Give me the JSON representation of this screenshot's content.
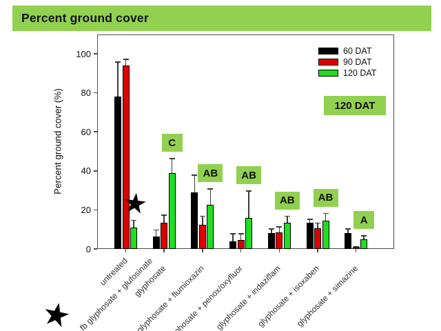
{
  "title": "Percent ground cover",
  "annotation_box": "120 DAT",
  "star_glyph": "★",
  "colors": {
    "banner_green": "#92d050",
    "sig_box_green": "#92d050",
    "bar_black": "#000000",
    "bar_red": "#dd0000",
    "bar_green": "#22dd22"
  },
  "legend": {
    "items": [
      {
        "label": "60 DAT",
        "color": "#000000"
      },
      {
        "label": "90 DAT",
        "color": "#dd0000"
      },
      {
        "label": "120 DAT",
        "color": "#22dd22"
      }
    ]
  },
  "chart_data": {
    "type": "bar",
    "title": "Percent ground cover",
    "xlabel": "",
    "ylabel": "Percent ground cover (%)",
    "ylim": [
      0,
      110
    ],
    "yticks": [
      0,
      20,
      40,
      60,
      80,
      100
    ],
    "grid": false,
    "legend_position": "top-right-inside",
    "categories": [
      "untreated fb glyphosate + glufosinate",
      "glyphosate",
      "glyphosate + flumioxazin",
      "glyphosate + penox/oxyfluor",
      "glyphosate + indaziflam",
      "glyphosate + isoxaben",
      "glyphosate + simazine"
    ],
    "axis_label_lines": [
      "untreated",
      "fb glyphosate + glufosinate",
      "glyphosate",
      "glyphosate + flumioxazin",
      "glyphosate + penox/oxyfluor",
      "glyphosate + indaziflam",
      "glyphosate + isoxaben",
      "glyphosate + simazine"
    ],
    "series": [
      {
        "name": "60 DAT",
        "color": "#000000",
        "values": [
          78,
          6.5,
          29,
          4,
          8,
          13.5,
          8
        ],
        "errors_top": [
          96,
          10,
          38,
          8,
          10.5,
          15.5,
          10.5
        ]
      },
      {
        "name": "90 DAT",
        "color": "#dd0000",
        "values": [
          94,
          13.5,
          12.5,
          4.5,
          8.5,
          10.5,
          1
        ],
        "errors_top": [
          97.5,
          17.5,
          17,
          8,
          11.5,
          13.5,
          1.5
        ]
      },
      {
        "name": "120 DAT",
        "color": "#22dd22",
        "values": [
          11,
          39,
          22.5,
          16,
          13.5,
          14.5,
          5
        ],
        "errors_top": [
          15,
          46.5,
          31,
          30,
          17,
          18.5,
          7
        ]
      }
    ],
    "sig_letters": [
      "",
      "C",
      "AB",
      "AB",
      "AB",
      "AB",
      "A"
    ],
    "annotations": [
      "120 DAT",
      "star on untreated 90/120 DAT bars",
      "star on fb glyphosate + glufosinate axis label"
    ]
  }
}
